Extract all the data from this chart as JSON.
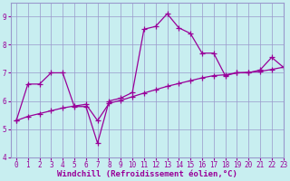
{
  "xlabel": "Windchill (Refroidissement éolien,°C)",
  "background_color": "#c8eef0",
  "grid_color": "#9999cc",
  "line_color": "#990099",
  "x_line1": [
    0,
    1,
    2,
    3,
    4,
    5,
    6,
    7,
    8,
    9,
    10,
    11,
    12,
    13,
    14,
    15,
    16,
    17,
    18,
    19,
    20,
    21,
    22,
    23
  ],
  "y_line1": [
    5.3,
    6.6,
    6.6,
    7.0,
    7.0,
    5.8,
    5.8,
    4.5,
    6.0,
    6.1,
    6.3,
    8.55,
    8.65,
    9.1,
    8.6,
    8.4,
    7.7,
    7.7,
    6.9,
    7.0,
    7.0,
    7.1,
    7.55,
    7.2
  ],
  "x_line2": [
    0,
    1,
    2,
    3,
    4,
    5,
    6,
    7,
    8,
    9,
    10,
    11,
    12,
    13,
    14,
    15,
    16,
    17,
    18,
    19,
    20,
    21,
    22,
    23
  ],
  "y_line2": [
    5.3,
    5.45,
    5.55,
    5.65,
    5.75,
    5.82,
    5.88,
    5.3,
    5.92,
    6.02,
    6.15,
    6.28,
    6.4,
    6.52,
    6.62,
    6.72,
    6.82,
    6.9,
    6.93,
    7.0,
    7.02,
    7.05,
    7.12,
    7.2
  ],
  "ylim": [
    4,
    9.5
  ],
  "xlim": [
    -0.5,
    23
  ],
  "yticks": [
    4,
    5,
    6,
    7,
    8,
    9
  ],
  "xticks": [
    0,
    1,
    2,
    3,
    4,
    5,
    6,
    7,
    8,
    9,
    10,
    11,
    12,
    13,
    14,
    15,
    16,
    17,
    18,
    19,
    20,
    21,
    22,
    23
  ],
  "tick_fontsize": 5.5,
  "xlabel_fontsize": 6.5
}
